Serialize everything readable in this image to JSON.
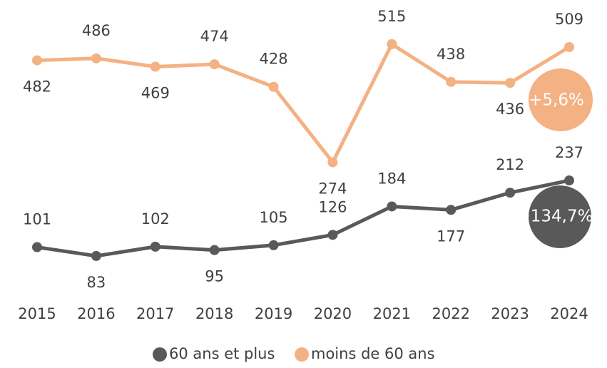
{
  "chart_data": {
    "type": "line",
    "categories": [
      "2015",
      "2016",
      "2017",
      "2018",
      "2019",
      "2020",
      "2021",
      "2022",
      "2023",
      "2024"
    ],
    "series": [
      {
        "name": "60 ans et plus",
        "color": "#595959",
        "values": [
          101,
          83,
          102,
          95,
          105,
          126,
          184,
          177,
          212,
          237
        ]
      },
      {
        "name": "moins de 60 ans",
        "color": "#f4b183",
        "values": [
          482,
          486,
          469,
          474,
          428,
          274,
          515,
          438,
          436,
          509
        ]
      }
    ],
    "ylim": [
      0,
      605
    ],
    "annotations": [
      "+134,7%",
      "+5,6%"
    ]
  }
}
